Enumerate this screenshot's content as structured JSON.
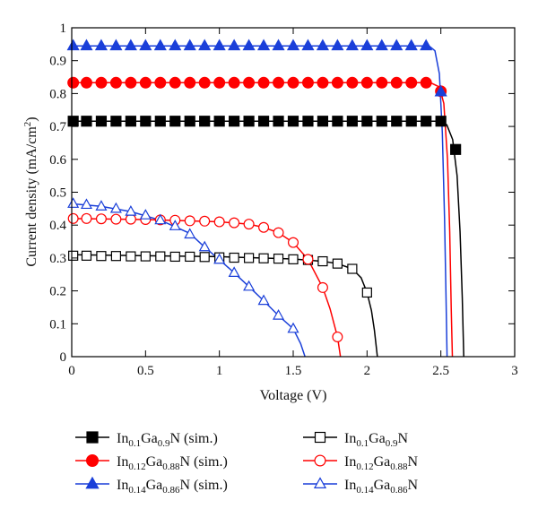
{
  "chart_data": {
    "type": "line",
    "title": "",
    "xlabel": "Voltage (V)",
    "ylabel": {
      "prefix": "Current density (mA/cm",
      "sup": "2",
      "suffix": ")"
    },
    "xlim": [
      0,
      3
    ],
    "ylim": [
      0,
      1
    ],
    "x_ticks": [
      0,
      0.5,
      1,
      1.5,
      2,
      2.5,
      3
    ],
    "x_tick_labels": [
      "0",
      "0.5",
      "1",
      "1.5",
      "2",
      "2.5",
      "3"
    ],
    "y_ticks": [
      0,
      0.1,
      0.2,
      0.3,
      0.4,
      0.5,
      0.6,
      0.7,
      0.8,
      0.9,
      1
    ],
    "y_tick_labels": [
      "0",
      "0.1",
      "0.2",
      "0.3",
      "0.4",
      "0.5",
      "0.6",
      "0.7",
      "0.8",
      "0.9",
      "1"
    ],
    "grid": false,
    "legend_position": "bottom",
    "series": [
      {
        "name_parts": [
          [
            "In",
            ""
          ],
          [
            "0.1",
            "sub"
          ],
          [
            "Ga",
            ""
          ],
          [
            "0.9",
            "sub"
          ],
          [
            "N (sim.)",
            ""
          ]
        ],
        "color": "#000000",
        "marker": "square",
        "filled": true,
        "curve": [
          [
            0,
            0.716
          ],
          [
            2.48,
            0.716
          ],
          [
            2.54,
            0.705
          ],
          [
            2.58,
            0.66
          ],
          [
            2.61,
            0.55
          ],
          [
            2.63,
            0.38
          ],
          [
            2.645,
            0.18
          ],
          [
            2.655,
            0
          ]
        ],
        "points": [
          [
            0.01,
            0.716
          ],
          [
            0.1,
            0.716
          ],
          [
            0.2,
            0.716
          ],
          [
            0.3,
            0.716
          ],
          [
            0.4,
            0.716
          ],
          [
            0.5,
            0.716
          ],
          [
            0.6,
            0.716
          ],
          [
            0.7,
            0.716
          ],
          [
            0.8,
            0.716
          ],
          [
            0.9,
            0.716
          ],
          [
            1.0,
            0.716
          ],
          [
            1.1,
            0.716
          ],
          [
            1.2,
            0.716
          ],
          [
            1.3,
            0.716
          ],
          [
            1.4,
            0.716
          ],
          [
            1.5,
            0.716
          ],
          [
            1.6,
            0.716
          ],
          [
            1.7,
            0.716
          ],
          [
            1.8,
            0.716
          ],
          [
            1.9,
            0.716
          ],
          [
            2.0,
            0.716
          ],
          [
            2.1,
            0.716
          ],
          [
            2.2,
            0.716
          ],
          [
            2.3,
            0.716
          ],
          [
            2.4,
            0.716
          ],
          [
            2.5,
            0.716
          ],
          [
            2.6,
            0.63
          ]
        ]
      },
      {
        "name_parts": [
          [
            "In",
            ""
          ],
          [
            "0.12",
            "sub"
          ],
          [
            "Ga",
            ""
          ],
          [
            "0.88",
            "sub"
          ],
          [
            "N (sim.)",
            ""
          ]
        ],
        "color": "#ff0000",
        "marker": "circle",
        "filled": true,
        "curve": [
          [
            0,
            0.833
          ],
          [
            2.43,
            0.833
          ],
          [
            2.49,
            0.82
          ],
          [
            2.52,
            0.77
          ],
          [
            2.545,
            0.6
          ],
          [
            2.56,
            0.38
          ],
          [
            2.57,
            0.15
          ],
          [
            2.578,
            0
          ]
        ],
        "points": [
          [
            0.01,
            0.833
          ],
          [
            0.1,
            0.833
          ],
          [
            0.2,
            0.833
          ],
          [
            0.3,
            0.833
          ],
          [
            0.4,
            0.833
          ],
          [
            0.5,
            0.833
          ],
          [
            0.6,
            0.833
          ],
          [
            0.7,
            0.833
          ],
          [
            0.8,
            0.833
          ],
          [
            0.9,
            0.833
          ],
          [
            1.0,
            0.833
          ],
          [
            1.1,
            0.833
          ],
          [
            1.2,
            0.833
          ],
          [
            1.3,
            0.833
          ],
          [
            1.4,
            0.833
          ],
          [
            1.5,
            0.833
          ],
          [
            1.6,
            0.833
          ],
          [
            1.7,
            0.833
          ],
          [
            1.8,
            0.833
          ],
          [
            1.9,
            0.833
          ],
          [
            2.0,
            0.833
          ],
          [
            2.1,
            0.833
          ],
          [
            2.2,
            0.833
          ],
          [
            2.3,
            0.833
          ],
          [
            2.4,
            0.833
          ],
          [
            2.5,
            0.807
          ]
        ]
      },
      {
        "name_parts": [
          [
            "In",
            ""
          ],
          [
            "0.14",
            "sub"
          ],
          [
            "Ga",
            ""
          ],
          [
            "0.86",
            "sub"
          ],
          [
            "N (sim.)",
            ""
          ]
        ],
        "color": "#1a3fd9",
        "marker": "triangle",
        "filled": true,
        "curve": [
          [
            0,
            0.945
          ],
          [
            2.42,
            0.945
          ],
          [
            2.46,
            0.93
          ],
          [
            2.49,
            0.86
          ],
          [
            2.51,
            0.68
          ],
          [
            2.525,
            0.42
          ],
          [
            2.535,
            0.18
          ],
          [
            2.542,
            0
          ]
        ],
        "points": [
          [
            0.01,
            0.945
          ],
          [
            0.1,
            0.945
          ],
          [
            0.2,
            0.945
          ],
          [
            0.3,
            0.945
          ],
          [
            0.4,
            0.945
          ],
          [
            0.5,
            0.945
          ],
          [
            0.6,
            0.945
          ],
          [
            0.7,
            0.945
          ],
          [
            0.8,
            0.945
          ],
          [
            0.9,
            0.945
          ],
          [
            1.0,
            0.945
          ],
          [
            1.1,
            0.945
          ],
          [
            1.2,
            0.945
          ],
          [
            1.3,
            0.945
          ],
          [
            1.4,
            0.945
          ],
          [
            1.5,
            0.945
          ],
          [
            1.6,
            0.945
          ],
          [
            1.7,
            0.945
          ],
          [
            1.8,
            0.945
          ],
          [
            1.9,
            0.945
          ],
          [
            2.0,
            0.945
          ],
          [
            2.1,
            0.945
          ],
          [
            2.2,
            0.945
          ],
          [
            2.3,
            0.945
          ],
          [
            2.4,
            0.945
          ],
          [
            2.5,
            0.805
          ]
        ]
      },
      {
        "name_parts": [
          [
            "In",
            ""
          ],
          [
            "0.1",
            "sub"
          ],
          [
            "Ga",
            ""
          ],
          [
            "0.9",
            "sub"
          ],
          [
            "N",
            ""
          ]
        ],
        "color": "#000000",
        "marker": "square",
        "filled": false,
        "curve": [
          [
            0,
            0.31
          ],
          [
            0.5,
            0.307
          ],
          [
            1.0,
            0.304
          ],
          [
            1.5,
            0.297
          ],
          [
            1.7,
            0.29
          ],
          [
            1.8,
            0.283
          ],
          [
            1.9,
            0.267
          ],
          [
            1.96,
            0.24
          ],
          [
            2.0,
            0.195
          ],
          [
            2.03,
            0.14
          ],
          [
            2.05,
            0.08
          ],
          [
            2.065,
            0.02
          ],
          [
            2.07,
            0
          ]
        ],
        "points": [
          [
            0.01,
            0.307
          ],
          [
            0.1,
            0.307
          ],
          [
            0.2,
            0.306
          ],
          [
            0.3,
            0.306
          ],
          [
            0.4,
            0.305
          ],
          [
            0.5,
            0.305
          ],
          [
            0.6,
            0.305
          ],
          [
            0.7,
            0.304
          ],
          [
            0.8,
            0.304
          ],
          [
            0.9,
            0.303
          ],
          [
            1.0,
            0.302
          ],
          [
            1.1,
            0.301
          ],
          [
            1.2,
            0.3
          ],
          [
            1.3,
            0.299
          ],
          [
            1.4,
            0.298
          ],
          [
            1.5,
            0.296
          ],
          [
            1.6,
            0.294
          ],
          [
            1.7,
            0.29
          ],
          [
            1.8,
            0.283
          ],
          [
            1.9,
            0.267
          ],
          [
            2.0,
            0.195
          ]
        ]
      },
      {
        "name_parts": [
          [
            "In",
            ""
          ],
          [
            "0.12",
            "sub"
          ],
          [
            "Ga",
            ""
          ],
          [
            "0.88",
            "sub"
          ],
          [
            "N",
            ""
          ]
        ],
        "color": "#ff0000",
        "marker": "circle",
        "filled": false,
        "curve": [
          [
            0,
            0.42
          ],
          [
            0.5,
            0.417
          ],
          [
            1.0,
            0.41
          ],
          [
            1.2,
            0.403
          ],
          [
            1.3,
            0.393
          ],
          [
            1.4,
            0.377
          ],
          [
            1.5,
            0.347
          ],
          [
            1.6,
            0.296
          ],
          [
            1.7,
            0.21
          ],
          [
            1.75,
            0.145
          ],
          [
            1.8,
            0.06
          ],
          [
            1.82,
            0
          ]
        ],
        "points": [
          [
            0.01,
            0.42
          ],
          [
            0.1,
            0.42
          ],
          [
            0.2,
            0.419
          ],
          [
            0.3,
            0.418
          ],
          [
            0.4,
            0.418
          ],
          [
            0.5,
            0.417
          ],
          [
            0.6,
            0.416
          ],
          [
            0.7,
            0.415
          ],
          [
            0.8,
            0.413
          ],
          [
            0.9,
            0.412
          ],
          [
            1.0,
            0.41
          ],
          [
            1.1,
            0.407
          ],
          [
            1.2,
            0.403
          ],
          [
            1.3,
            0.393
          ],
          [
            1.4,
            0.377
          ],
          [
            1.5,
            0.347
          ],
          [
            1.6,
            0.296
          ],
          [
            1.7,
            0.21
          ],
          [
            1.8,
            0.06
          ]
        ]
      },
      {
        "name_parts": [
          [
            "In",
            ""
          ],
          [
            "0.14",
            "sub"
          ],
          [
            "Ga",
            ""
          ],
          [
            "0.86",
            "sub"
          ],
          [
            "N",
            ""
          ]
        ],
        "color": "#1a3fd9",
        "marker": "triangle",
        "filled": false,
        "curve": [
          [
            0,
            0.465
          ],
          [
            0.2,
            0.457
          ],
          [
            0.4,
            0.441
          ],
          [
            0.6,
            0.415
          ],
          [
            0.8,
            0.375
          ],
          [
            0.9,
            0.333
          ],
          [
            1.0,
            0.295
          ],
          [
            1.1,
            0.255
          ],
          [
            1.2,
            0.213
          ],
          [
            1.3,
            0.17
          ],
          [
            1.4,
            0.125
          ],
          [
            1.5,
            0.085
          ],
          [
            1.55,
            0.04
          ],
          [
            1.58,
            0
          ]
        ],
        "points": [
          [
            0.01,
            0.465
          ],
          [
            0.1,
            0.462
          ],
          [
            0.2,
            0.457
          ],
          [
            0.3,
            0.45
          ],
          [
            0.4,
            0.441
          ],
          [
            0.5,
            0.43
          ],
          [
            0.6,
            0.415
          ],
          [
            0.7,
            0.397
          ],
          [
            0.8,
            0.372
          ],
          [
            0.9,
            0.333
          ],
          [
            1.0,
            0.295
          ],
          [
            1.1,
            0.255
          ],
          [
            1.2,
            0.213
          ],
          [
            1.3,
            0.17
          ],
          [
            1.4,
            0.125
          ],
          [
            1.5,
            0.085
          ]
        ]
      }
    ]
  }
}
